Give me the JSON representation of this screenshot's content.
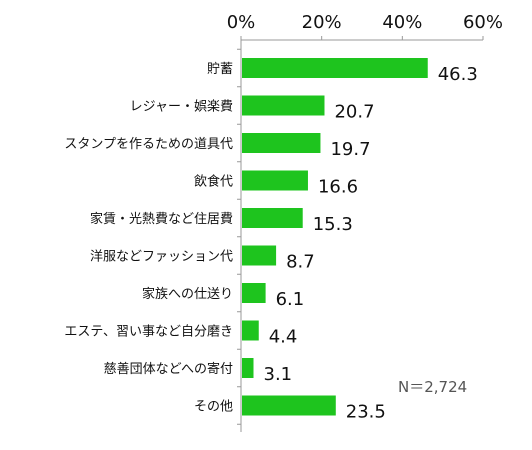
{
  "chart_data": {
    "type": "bar",
    "orientation": "horizontal",
    "categories": [
      "貯蓄",
      "レジャー・娯楽費",
      "スタンプを作るための道具代",
      "飲食代",
      "家賃・光熱費など住居費",
      "洋服などファッション代",
      "家族への仕送り",
      "エステ、習い事など自分磨き",
      "慈善団体などへの寄付",
      "その他"
    ],
    "values": [
      46.3,
      20.7,
      19.7,
      16.6,
      15.3,
      8.7,
      6.1,
      4.4,
      3.1,
      23.5
    ],
    "value_labels": [
      "46.3",
      "20.7",
      "19.7",
      "16.6",
      "15.3",
      "8.7",
      "6.1",
      "4.4",
      "3.1",
      "23.5"
    ],
    "xticks": [
      0,
      20,
      40,
      60
    ],
    "xtick_labels": [
      "0%",
      "20%",
      "40%",
      "60%"
    ],
    "xlim": [
      0,
      60
    ],
    "axis_position": "top",
    "grid": false,
    "note": "N＝2,724",
    "colors": {
      "bar": "#1ec41e",
      "axis": "#999999"
    }
  }
}
